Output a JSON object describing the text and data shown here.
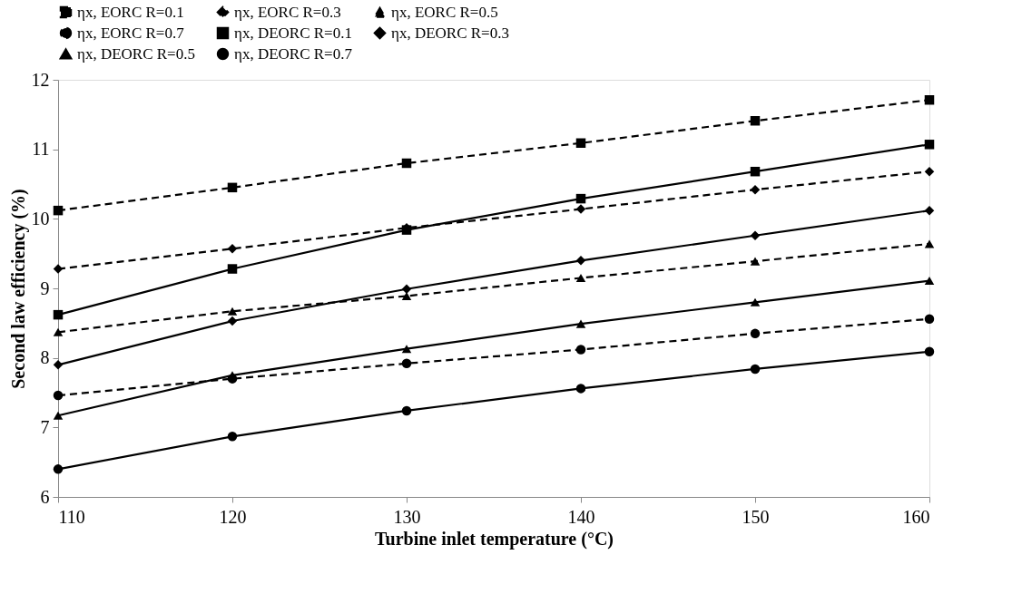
{
  "chart_data": {
    "type": "line",
    "xlabel": "Turbine inlet temperature (°C)",
    "ylabel": "Second law efficiency (%)",
    "x": [
      110,
      120,
      130,
      140,
      150,
      160
    ],
    "xlim": [
      110,
      160
    ],
    "xticks": [
      110,
      120,
      130,
      140,
      150,
      160
    ],
    "ylim": [
      6,
      12
    ],
    "yticks": [
      6,
      7,
      8,
      9,
      10,
      11,
      12
    ],
    "grid": false,
    "legend": "top",
    "series": [
      {
        "name": "ηx, EORC R=0.1",
        "color": "#000000",
        "marker": "square",
        "line_style": "dashed",
        "values": [
          10.12,
          10.45,
          10.8,
          11.09,
          11.41,
          11.71
        ]
      },
      {
        "name": "ηx, EORC R=0.3",
        "color": "#000000",
        "marker": "diamond",
        "line_style": "dashed",
        "values": [
          9.28,
          9.57,
          9.87,
          10.14,
          10.42,
          10.68
        ]
      },
      {
        "name": "ηx, EORC R=0.5",
        "color": "#000000",
        "marker": "triangle",
        "line_style": "dashed",
        "values": [
          8.37,
          8.67,
          8.89,
          9.15,
          9.39,
          9.64
        ]
      },
      {
        "name": "ηx, EORC R=0.7",
        "color": "#000000",
        "marker": "circle",
        "line_style": "dashed",
        "values": [
          7.46,
          7.7,
          7.92,
          8.12,
          8.35,
          8.56
        ]
      },
      {
        "name": "ηx, DEORC R=0.1",
        "color": "#000000",
        "marker": "square",
        "line_style": "solid",
        "values": [
          8.62,
          9.28,
          9.84,
          10.29,
          10.68,
          11.07
        ]
      },
      {
        "name": "ηx, DEORC R=0.3",
        "color": "#000000",
        "marker": "diamond",
        "line_style": "solid",
        "values": [
          7.9,
          8.53,
          8.99,
          9.4,
          9.76,
          10.12
        ]
      },
      {
        "name": "ηx, DEORC R=0.5",
        "color": "#000000",
        "marker": "triangle",
        "line_style": "solid",
        "values": [
          7.17,
          7.75,
          8.13,
          8.49,
          8.8,
          9.11
        ]
      },
      {
        "name": "ηx, DEORC R=0.7",
        "color": "#000000",
        "marker": "circle",
        "line_style": "solid",
        "values": [
          6.4,
          6.87,
          7.24,
          7.56,
          7.84,
          8.09
        ]
      }
    ]
  }
}
